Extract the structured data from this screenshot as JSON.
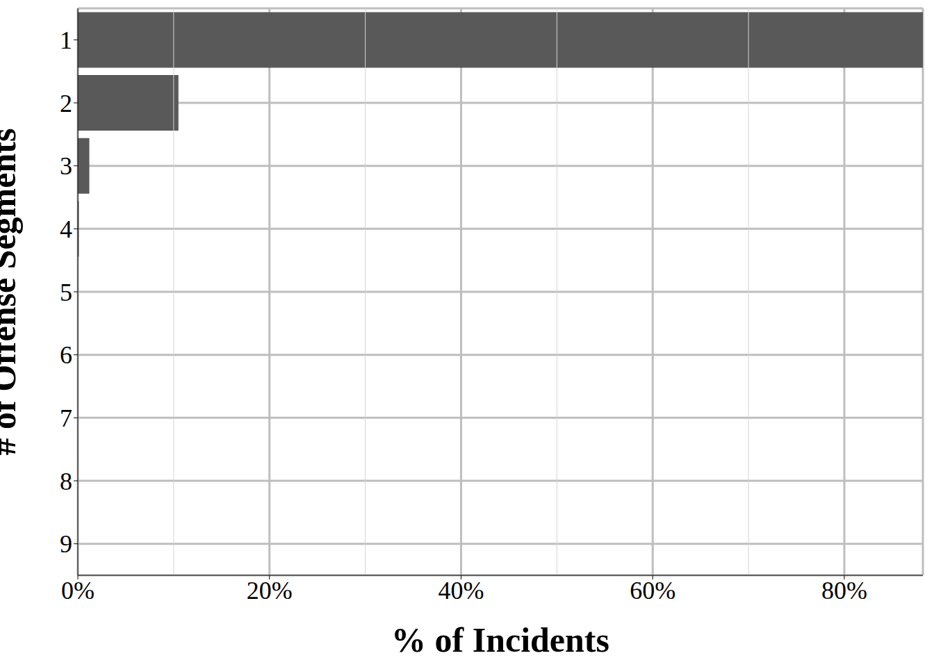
{
  "chart_data": {
    "type": "bar",
    "orientation": "horizontal",
    "x_label": "% of Incidents",
    "y_label": "# of Offense Segments",
    "categories": [
      "1",
      "2",
      "3",
      "4",
      "5",
      "6",
      "7",
      "8",
      "9"
    ],
    "values": [
      88.2,
      10.5,
      1.2,
      0.1,
      0,
      0,
      0,
      0,
      0
    ],
    "color": "#595959",
    "xlim": [
      0,
      88.2
    ],
    "xticks": [
      {
        "value": 0,
        "label": "0%"
      },
      {
        "value": 20,
        "label": "20%"
      },
      {
        "value": 40,
        "label": "40%"
      },
      {
        "value": 60,
        "label": "60%"
      },
      {
        "value": 80,
        "label": "80%"
      }
    ],
    "grid": true
  }
}
